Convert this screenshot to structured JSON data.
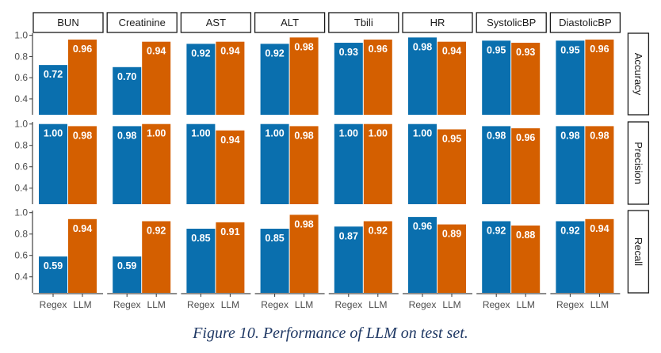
{
  "caption": "Figure 10. Performance of LLM on test set.",
  "colors": {
    "Regex": "#0a6fae",
    "LLM": "#d45f00"
  },
  "chart_data": {
    "type": "bar",
    "facets_columns": [
      "BUN",
      "Creatinine",
      "AST",
      "ALT",
      "Tbili",
      "HR",
      "SystolicBP",
      "DiastolicBP"
    ],
    "facets_rows": [
      "Accuracy",
      "Precision",
      "Recall"
    ],
    "categories": [
      "Regex",
      "LLM"
    ],
    "y_ticks": [
      0.4,
      0.6,
      0.8,
      1.0
    ],
    "y_tick_labels": [
      "0.4",
      "0.6",
      "0.8",
      "1.0"
    ],
    "ylim": [
      0.25,
      1.02
    ],
    "grid": false,
    "values": {
      "Accuracy": {
        "BUN": {
          "Regex": "0.72",
          "LLM": "0.96"
        },
        "Creatinine": {
          "Regex": "0.70",
          "LLM": "0.94"
        },
        "AST": {
          "Regex": "0.92",
          "LLM": "0.94"
        },
        "ALT": {
          "Regex": "0.92",
          "LLM": "0.98"
        },
        "Tbili": {
          "Regex": "0.93",
          "LLM": "0.96"
        },
        "HR": {
          "Regex": "0.98",
          "LLM": "0.94"
        },
        "SystolicBP": {
          "Regex": "0.95",
          "LLM": "0.93"
        },
        "DiastolicBP": {
          "Regex": "0.95",
          "LLM": "0.96"
        }
      },
      "Precision": {
        "BUN": {
          "Regex": "1.00",
          "LLM": "0.98"
        },
        "Creatinine": {
          "Regex": "0.98",
          "LLM": "1.00"
        },
        "AST": {
          "Regex": "1.00",
          "LLM": "0.94"
        },
        "ALT": {
          "Regex": "1.00",
          "LLM": "0.98"
        },
        "Tbili": {
          "Regex": "1.00",
          "LLM": "1.00"
        },
        "HR": {
          "Regex": "1.00",
          "LLM": "0.95"
        },
        "SystolicBP": {
          "Regex": "0.98",
          "LLM": "0.96"
        },
        "DiastolicBP": {
          "Regex": "0.98",
          "LLM": "0.98"
        }
      },
      "Recall": {
        "BUN": {
          "Regex": "0.59",
          "LLM": "0.94"
        },
        "Creatinine": {
          "Regex": "0.59",
          "LLM": "0.92"
        },
        "AST": {
          "Regex": "0.85",
          "LLM": "0.91"
        },
        "ALT": {
          "Regex": "0.85",
          "LLM": "0.98"
        },
        "Tbili": {
          "Regex": "0.87",
          "LLM": "0.92"
        },
        "HR": {
          "Regex": "0.96",
          "LLM": "0.89"
        },
        "SystolicBP": {
          "Regex": "0.92",
          "LLM": "0.88"
        },
        "DiastolicBP": {
          "Regex": "0.92",
          "LLM": "0.94"
        }
      }
    }
  }
}
